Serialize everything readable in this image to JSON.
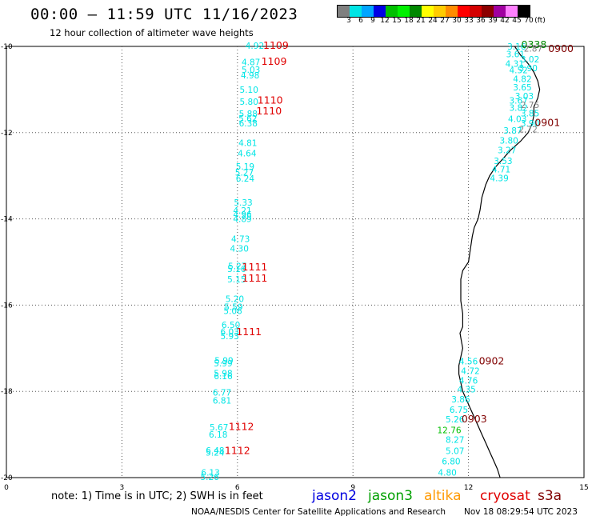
{
  "header": {
    "title": "00:00 – 11:59 UTC 11/16/2023",
    "subtitle": "12 hour collection of altimeter wave heights"
  },
  "colorbar": {
    "unit_label": "(ft)",
    "ticks": [
      "3",
      "6",
      "9",
      "12",
      "15",
      "18",
      "21",
      "24",
      "27",
      "30",
      "33",
      "36",
      "39",
      "42",
      "45",
      "70"
    ],
    "colors": [
      "#7f7f7f",
      "#00e5e5",
      "#00a5ff",
      "#0000e5",
      "#00c000",
      "#00f000",
      "#008800",
      "#ffff00",
      "#ffcc00",
      "#ff8c00",
      "#ff0000",
      "#d40000",
      "#8c0000",
      "#a000a0",
      "#ff80ff",
      "#000000"
    ]
  },
  "axes": {
    "lon_ticks": [
      "0",
      "3",
      "6",
      "9",
      "12",
      "15"
    ],
    "lat_ticks": [
      "-10",
      "-12",
      "-14",
      "-16",
      "-18",
      "-20"
    ]
  },
  "footer": {
    "note": "note: 1) Time is in UTC; 2) SWH is in feet",
    "legend": [
      {
        "name": "jason2",
        "color": "#0000e0"
      },
      {
        "name": "jason3",
        "color": "#00a000"
      },
      {
        "name": "altika",
        "color": "#ff9900"
      },
      {
        "name": "cryosat",
        "color": "#e00000"
      },
      {
        "name": "s3a",
        "color": "#800000"
      }
    ],
    "credit": "NOAA/NESDIS Center for Satellite Applications and Research",
    "datestamp": "Nov 18 08:29:54 UTC 2023"
  },
  "map_data": {
    "tracks": [
      {
        "satellite": "cryosat",
        "color": "#00e5e5",
        "points": [
          {
            "lon": 6.45,
            "lat": -9.98,
            "swh": "4.92"
          },
          {
            "lon": 6.35,
            "lat": -10.36,
            "swh": "4.87"
          },
          {
            "lon": 6.35,
            "lat": -10.54,
            "swh": "5.03"
          },
          {
            "lon": 6.33,
            "lat": -10.67,
            "swh": "4.98"
          },
          {
            "lon": 6.3,
            "lat": -11.0,
            "swh": "5.10"
          },
          {
            "lon": 6.3,
            "lat": -11.28,
            "swh": "5.80"
          },
          {
            "lon": 6.28,
            "lat": -11.56,
            "swh": "5.88"
          },
          {
            "lon": 6.27,
            "lat": -11.67,
            "swh": "5.62"
          },
          {
            "lon": 6.28,
            "lat": -11.78,
            "swh": "6.38"
          },
          {
            "lon": 6.27,
            "lat": -12.24,
            "swh": "4.81"
          },
          {
            "lon": 6.25,
            "lat": -12.48,
            "swh": "4.64"
          },
          {
            "lon": 6.2,
            "lat": -12.78,
            "swh": "5.19"
          },
          {
            "lon": 6.18,
            "lat": -12.92,
            "swh": "5.27"
          },
          {
            "lon": 6.2,
            "lat": -13.06,
            "swh": "6.24"
          },
          {
            "lon": 6.15,
            "lat": -13.62,
            "swh": "5.33"
          },
          {
            "lon": 6.13,
            "lat": -13.8,
            "swh": "4.21"
          },
          {
            "lon": 6.13,
            "lat": -13.9,
            "swh": "4.96"
          },
          {
            "lon": 6.13,
            "lat": -14.0,
            "swh": "4.89"
          },
          {
            "lon": 6.08,
            "lat": -14.46,
            "swh": "4.73"
          },
          {
            "lon": 6.05,
            "lat": -14.68,
            "swh": "4.30"
          },
          {
            "lon": 6.0,
            "lat": -15.09,
            "swh": "5.27"
          },
          {
            "lon": 5.98,
            "lat": -15.16,
            "swh": "5.16"
          },
          {
            "lon": 5.98,
            "lat": -15.4,
            "swh": "5.15"
          },
          {
            "lon": 5.93,
            "lat": -15.85,
            "swh": "5.20"
          },
          {
            "lon": 5.9,
            "lat": -16.04,
            "swh": "5.59"
          },
          {
            "lon": 5.88,
            "lat": -16.13,
            "swh": "5.06"
          },
          {
            "lon": 5.83,
            "lat": -16.46,
            "swh": "6.50"
          },
          {
            "lon": 5.8,
            "lat": -16.61,
            "swh": "6.03"
          },
          {
            "lon": 5.8,
            "lat": -16.72,
            "swh": "5.93"
          },
          {
            "lon": 5.65,
            "lat": -17.28,
            "swh": "5.99"
          },
          {
            "lon": 5.63,
            "lat": -17.35,
            "swh": "5.99"
          },
          {
            "lon": 5.63,
            "lat": -17.58,
            "swh": "5.98"
          },
          {
            "lon": 5.63,
            "lat": -17.64,
            "swh": "6.16"
          },
          {
            "lon": 5.6,
            "lat": -18.02,
            "swh": "6.77"
          },
          {
            "lon": 5.6,
            "lat": -18.21,
            "swh": "6.81"
          },
          {
            "lon": 5.52,
            "lat": -18.83,
            "swh": "5.67"
          },
          {
            "lon": 5.5,
            "lat": -19.0,
            "swh": "6.18"
          },
          {
            "lon": 5.42,
            "lat": -19.37,
            "swh": "6.48"
          },
          {
            "lon": 5.42,
            "lat": -19.42,
            "swh": "5.24"
          },
          {
            "lon": 5.3,
            "lat": -19.88,
            "swh": "6.13"
          },
          {
            "lon": 5.28,
            "lat": -19.98,
            "swh": "5.26"
          }
        ],
        "time_labels": [
          {
            "lon": 7.0,
            "lat": -9.98,
            "label": "1109"
          },
          {
            "lon": 6.95,
            "lat": -10.35,
            "label": "1109"
          },
          {
            "lon": 6.85,
            "lat": -11.25,
            "label": "1110"
          },
          {
            "lon": 6.82,
            "lat": -11.5,
            "label": "1110"
          },
          {
            "lon": 6.45,
            "lat": -15.12,
            "label": "1111"
          },
          {
            "lon": 6.45,
            "lat": -15.38,
            "label": "1111"
          },
          {
            "lon": 6.3,
            "lat": -16.62,
            "label": "1111"
          },
          {
            "lon": 6.1,
            "lat": -18.82,
            "label": "1112"
          },
          {
            "lon": 6.0,
            "lat": -19.38,
            "label": "1112"
          }
        ]
      },
      {
        "satellite": "s3a",
        "color": "#00e5e5",
        "points": [
          {
            "lon": 13.25,
            "lat": -10.0,
            "swh": "3.16"
          },
          {
            "lon": 13.22,
            "lat": -10.18,
            "swh": "3.61"
          },
          {
            "lon": 13.6,
            "lat": -10.3,
            "swh": "3.02"
          },
          {
            "lon": 13.2,
            "lat": -10.4,
            "swh": "4.31"
          },
          {
            "lon": 13.55,
            "lat": -10.5,
            "swh": "3.90"
          },
          {
            "lon": 13.3,
            "lat": -10.55,
            "swh": "4.52"
          },
          {
            "lon": 13.4,
            "lat": -10.75,
            "swh": "4.82"
          },
          {
            "lon": 13.4,
            "lat": -10.95,
            "swh": "3.65"
          },
          {
            "lon": 13.45,
            "lat": -11.15,
            "swh": "3.03"
          },
          {
            "lon": 13.3,
            "lat": -11.25,
            "swh": "3.67"
          },
          {
            "lon": 13.3,
            "lat": -11.42,
            "swh": "3.82"
          },
          {
            "lon": 13.6,
            "lat": -11.55,
            "swh": "3.85"
          },
          {
            "lon": 13.27,
            "lat": -11.68,
            "swh": "4.03"
          },
          {
            "lon": 13.6,
            "lat": -11.78,
            "swh": "3.90"
          },
          {
            "lon": 13.15,
            "lat": -11.95,
            "swh": "3.87"
          },
          {
            "lon": 13.05,
            "lat": -12.18,
            "swh": "3.80"
          },
          {
            "lon": 13.0,
            "lat": -12.4,
            "swh": "3.27"
          },
          {
            "lon": 12.9,
            "lat": -12.65,
            "swh": "3.53"
          },
          {
            "lon": 12.85,
            "lat": -12.85,
            "swh": "4.71"
          },
          {
            "lon": 12.8,
            "lat": -13.05,
            "swh": "4.39"
          },
          {
            "lon": 12.0,
            "lat": -17.3,
            "swh": "4.56"
          },
          {
            "lon": 12.05,
            "lat": -17.52,
            "swh": "4.72"
          },
          {
            "lon": 12.0,
            "lat": -17.75,
            "swh": "4.76"
          },
          {
            "lon": 11.95,
            "lat": -17.95,
            "swh": "4.35"
          },
          {
            "lon": 11.8,
            "lat": -18.18,
            "swh": "3.86"
          },
          {
            "lon": 11.75,
            "lat": -18.42,
            "swh": "6.75"
          },
          {
            "lon": 11.65,
            "lat": -18.65,
            "swh": "5.26"
          },
          {
            "lon": 11.65,
            "lat": -19.12,
            "swh": "8.27"
          },
          {
            "lon": 11.65,
            "lat": -19.38,
            "swh": "5.07"
          },
          {
            "lon": 11.55,
            "lat": -19.62,
            "swh": "6.80"
          },
          {
            "lon": 11.45,
            "lat": -19.88,
            "swh": "4.80"
          }
        ],
        "time_labels": [
          {
            "lon": 14.4,
            "lat": -10.06,
            "label": "0900"
          },
          {
            "lon": 14.05,
            "lat": -11.77,
            "label": "0901"
          },
          {
            "lon": 12.6,
            "lat": -17.3,
            "label": "0902"
          },
          {
            "lon": 12.15,
            "lat": -18.65,
            "label": "0903"
          }
        ]
      },
      {
        "satellite": "jason3",
        "color": "#00c000",
        "points": [
          {
            "lon": 11.5,
            "lat": -18.9,
            "swh": "12.76"
          }
        ],
        "time_labels": [
          {
            "lon": 13.7,
            "lat": -9.96,
            "label": "0338"
          }
        ]
      },
      {
        "satellite": "extra",
        "color": "#7f7f7f",
        "points": [
          {
            "lon": 13.68,
            "lat": -10.05,
            "swh": "2.87"
          },
          {
            "lon": 13.6,
            "lat": -11.35,
            "swh": "2.75"
          },
          {
            "lon": 13.55,
            "lat": -11.92,
            "swh": "2.72"
          }
        ],
        "time_labels": []
      }
    ],
    "coastline": [
      [
        13.2,
        -10.0
      ],
      [
        13.35,
        -10.2
      ],
      [
        13.55,
        -10.4
      ],
      [
        13.7,
        -10.6
      ],
      [
        13.8,
        -10.8
      ],
      [
        13.85,
        -11.0
      ],
      [
        13.8,
        -11.2
      ],
      [
        13.7,
        -11.4
      ],
      [
        13.7,
        -11.6
      ],
      [
        13.65,
        -11.8
      ],
      [
        13.55,
        -12.0
      ],
      [
        13.35,
        -12.2
      ],
      [
        13.1,
        -12.4
      ],
      [
        12.9,
        -12.6
      ],
      [
        12.7,
        -12.8
      ],
      [
        12.55,
        -13.0
      ],
      [
        12.45,
        -13.2
      ],
      [
        12.35,
        -13.5
      ],
      [
        12.3,
        -13.8
      ],
      [
        12.25,
        -14.0
      ],
      [
        12.15,
        -14.2
      ],
      [
        12.1,
        -14.4
      ],
      [
        12.05,
        -14.7
      ],
      [
        12.0,
        -15.0
      ],
      [
        11.85,
        -15.2
      ],
      [
        11.8,
        -15.4
      ],
      [
        11.8,
        -15.6
      ],
      [
        11.8,
        -15.9
      ],
      [
        11.85,
        -16.2
      ],
      [
        11.85,
        -16.5
      ],
      [
        11.78,
        -16.65
      ],
      [
        11.82,
        -16.85
      ],
      [
        11.85,
        -17.0
      ],
      [
        11.8,
        -17.2
      ],
      [
        11.75,
        -17.4
      ],
      [
        11.75,
        -17.6
      ],
      [
        11.8,
        -17.8
      ],
      [
        11.85,
        -18.0
      ],
      [
        11.95,
        -18.2
      ],
      [
        12.05,
        -18.4
      ],
      [
        12.15,
        -18.6
      ],
      [
        12.25,
        -18.8
      ],
      [
        12.35,
        -19.0
      ],
      [
        12.45,
        -19.2
      ],
      [
        12.55,
        -19.4
      ],
      [
        12.65,
        -19.6
      ],
      [
        12.75,
        -19.8
      ],
      [
        12.82,
        -20.0
      ]
    ],
    "lon_range": [
      0,
      15
    ],
    "lat_range": [
      -20,
      -10
    ]
  }
}
